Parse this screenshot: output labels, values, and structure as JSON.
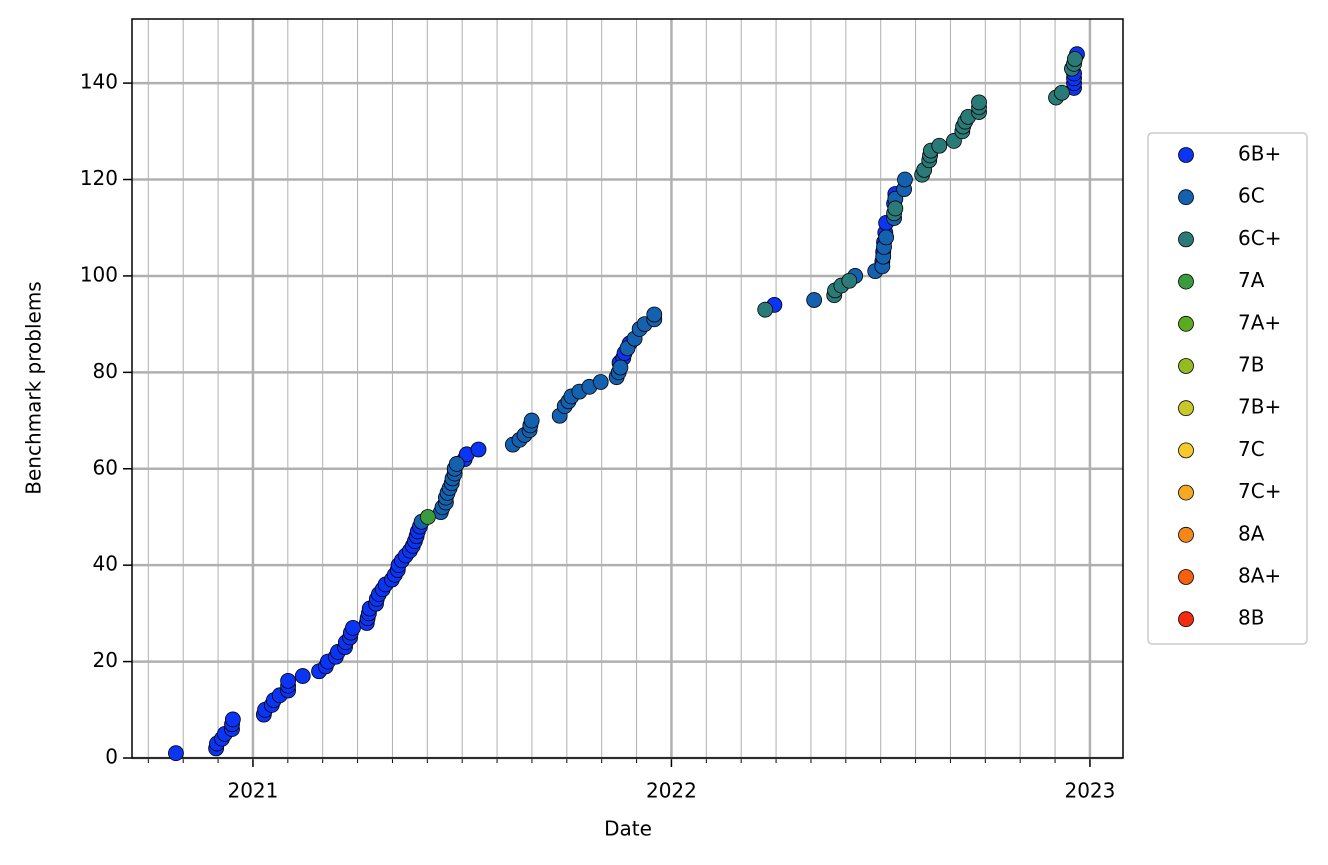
{
  "chart_data": {
    "type": "scatter",
    "x_label": "Date",
    "y_label": "Benchmark problems",
    "xlim": [
      2020.711,
      2023.079
    ],
    "xticks": [
      2021,
      2022,
      2023
    ],
    "ylim": [
      0,
      153.3
    ],
    "yticks": [
      0,
      20,
      40,
      60,
      80,
      100,
      120,
      140
    ],
    "grid": true,
    "minor_grid": "monthly",
    "legend": "right",
    "series": [
      {
        "name": "6B+",
        "color": "#0b35f5",
        "x": [
          2020.816,
          2020.912,
          2020.914,
          2020.926,
          2020.933,
          2020.95,
          2020.95,
          2020.952,
          2021.026,
          2021.029,
          2021.045,
          2021.05,
          2021.064,
          2021.084,
          2021.084,
          2021.084,
          2021.119,
          2021.158,
          2021.174,
          2021.179,
          2021.198,
          2021.203,
          2021.22,
          2021.222,
          2021.232,
          2021.234,
          2021.239,
          2021.272,
          2021.274,
          2021.277,
          2021.279,
          2021.294,
          2021.296,
          2021.301,
          2021.31,
          2021.317,
          2021.332,
          2021.339,
          2021.346,
          2021.348,
          2021.356,
          2021.365,
          2021.375,
          2021.382,
          2021.387,
          2021.391,
          2021.394,
          2021.399,
          2021.506,
          2021.511,
          2021.539,
          2021.876,
          2021.885,
          2021.888,
          2021.9,
          2022.246,
          2022.504,
          2022.506,
          2022.508,
          2022.511,
          2022.513,
          2022.532,
          2022.535,
          2022.962,
          2022.962,
          2022.962,
          2022.962,
          2022.969
        ],
        "values": [
          1,
          2,
          3,
          4,
          5,
          6,
          7,
          8,
          9,
          10,
          11,
          12,
          13,
          14,
          15,
          16,
          17,
          18,
          19,
          20,
          21,
          22,
          23,
          24,
          25,
          26,
          27,
          28,
          29,
          30,
          31,
          32,
          33,
          34,
          35,
          36,
          37,
          38,
          39,
          40,
          41,
          42,
          43,
          44,
          45,
          46,
          47,
          48,
          62,
          63,
          64,
          82,
          83,
          84,
          86,
          94,
          103,
          105,
          107,
          109,
          111,
          115,
          117,
          139,
          140,
          141,
          142,
          146
        ]
      },
      {
        "name": "6C",
        "color": "#1461b0",
        "x": [
          2021.403,
          2021.449,
          2021.453,
          2021.461,
          2021.461,
          2021.465,
          2021.47,
          2021.475,
          2021.477,
          2021.482,
          2021.482,
          2021.487,
          2021.621,
          2021.637,
          2021.649,
          2021.661,
          2021.663,
          2021.666,
          2021.733,
          2021.745,
          2021.754,
          2021.761,
          2021.78,
          2021.804,
          2021.831,
          2021.869,
          2021.874,
          2021.878,
          2021.895,
          2021.912,
          2021.924,
          2021.936,
          2021.959,
          2021.959,
          2022.341,
          2022.439,
          2022.487,
          2022.504,
          2022.506,
          2022.508,
          2022.513,
          2022.532,
          2022.535,
          2022.556,
          2022.558
        ],
        "values": [
          49,
          51,
          52,
          53,
          54,
          55,
          56,
          57,
          58,
          59,
          60,
          61,
          65,
          66,
          67,
          68,
          69,
          70,
          71,
          73,
          74,
          75,
          76,
          77,
          78,
          79,
          80,
          81,
          85,
          87,
          89,
          90,
          91,
          92,
          95,
          100,
          101,
          102,
          104,
          106,
          108,
          112,
          116,
          118,
          120
        ]
      },
      {
        "name": "6C+",
        "color": "#2a7b78",
        "x": [
          2022.224,
          2022.389,
          2022.391,
          2022.406,
          2022.425,
          2022.532,
          2022.535,
          2022.599,
          2022.604,
          2022.616,
          2022.618,
          2022.62,
          2022.64,
          2022.675,
          2022.695,
          2022.697,
          2022.702,
          2022.709,
          2022.735,
          2022.735,
          2022.735,
          2022.919,
          2022.933,
          2022.957,
          2022.962,
          2022.964
        ],
        "values": [
          93,
          96,
          97,
          98,
          99,
          113,
          114,
          121,
          122,
          124,
          125,
          126,
          127,
          128,
          130,
          131,
          132,
          133,
          134,
          135,
          136,
          137,
          138,
          143,
          144,
          145
        ]
      },
      {
        "name": "7A",
        "color": "#3a9a3e",
        "x": [
          2021.418
        ],
        "values": [
          50
        ]
      },
      {
        "name": "7A+",
        "color": "#5aab1e",
        "x": [],
        "values": []
      },
      {
        "name": "7B",
        "color": "#94bc22",
        "x": [],
        "values": []
      },
      {
        "name": "7B+",
        "color": "#c9c72a",
        "x": [],
        "values": []
      },
      {
        "name": "7C",
        "color": "#f6c92c",
        "x": [],
        "values": []
      },
      {
        "name": "7C+",
        "color": "#f7a823",
        "x": [],
        "values": []
      },
      {
        "name": "8A",
        "color": "#f7871a",
        "x": [],
        "values": []
      },
      {
        "name": "8A+",
        "color": "#f6600f",
        "x": [],
        "values": []
      },
      {
        "name": "8B",
        "color": "#f52a0f",
        "x": [],
        "values": []
      }
    ]
  }
}
